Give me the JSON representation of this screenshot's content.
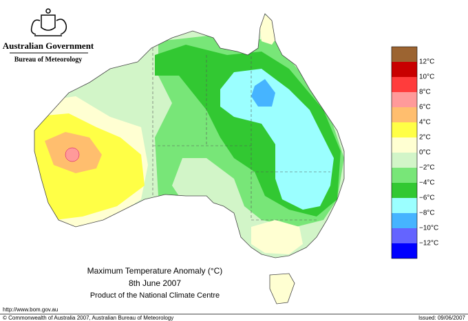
{
  "header": {
    "government": "Australian Government",
    "bureau": "Bureau of Meteorology"
  },
  "map": {
    "title": "Maximum Temperature Anomaly (°C)",
    "date": "8th June 2007",
    "product": "Product of the National Climate Centre"
  },
  "legend": {
    "colors": [
      "#9c6431",
      "#c80000",
      "#ff3c3c",
      "#ff9a9a",
      "#ffbe6e",
      "#ffff46",
      "#ffffd2",
      "#d2f5c8",
      "#78e678",
      "#32c832",
      "#9bffff",
      "#46b4ff",
      "#6464ff",
      "#0000ff"
    ],
    "labels": [
      "12°C",
      "10°C",
      "8°C",
      "6°C",
      "4°C",
      "2°C",
      "0°C",
      "−2°C",
      "−4°C",
      "−6°C",
      "−8°C",
      "−10°C",
      "−12°C"
    ]
  },
  "footer": {
    "url": "http://www.bom.gov.au",
    "copyright": "© Commonwealth of Australia 2007, Australian Bureau of Meteorology",
    "issued": "Issued: 09/06/2007"
  }
}
